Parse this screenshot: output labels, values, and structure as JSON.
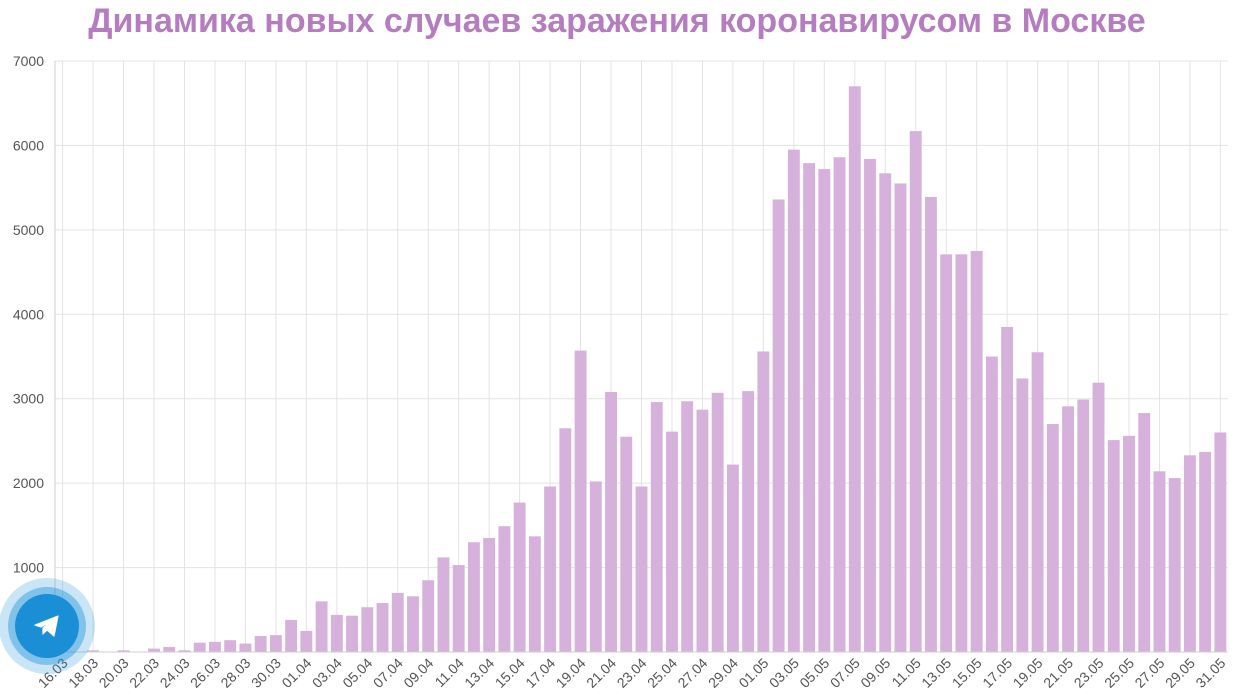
{
  "title": "Динамика новых случаев заражения коронавирусом в Москве",
  "colors": {
    "bar": "#d6b1db",
    "title": "#b57cc0",
    "grid": "#e3e3e3",
    "telegram": "#1a8fd6"
  },
  "telegram_button": {
    "icon": "telegram-plane-icon"
  },
  "chart_data": {
    "type": "bar",
    "title": "Динамика новых случаев заражения коронавирусом в Москве",
    "ylim": [
      0,
      7000
    ],
    "yticks": [
      1000,
      2000,
      3000,
      4000,
      5000,
      6000,
      7000
    ],
    "grid": true,
    "x_tick_labels": [
      "16.03",
      "18.03",
      "20.03",
      "22.03",
      "24.03",
      "26.03",
      "28.03",
      "30.03",
      "01.04",
      "03.04",
      "05.04",
      "07.04",
      "09.04",
      "11.04",
      "13.04",
      "15.04",
      "17.04",
      "19.04",
      "21.04",
      "23.04",
      "25.04",
      "27.04",
      "29.04",
      "01.05",
      "03.05",
      "05.05",
      "07.05",
      "09.05",
      "11.05",
      "13.05",
      "15.05",
      "17.05",
      "19.05",
      "21.05",
      "23.05",
      "25.05",
      "27.05",
      "29.05",
      "31.05"
    ],
    "categories": [
      "16.03",
      "17.03",
      "18.03",
      "19.03",
      "20.03",
      "21.03",
      "22.03",
      "23.03",
      "24.03",
      "25.03",
      "26.03",
      "27.03",
      "28.03",
      "29.03",
      "30.03",
      "31.03",
      "01.04",
      "02.04",
      "03.04",
      "04.04",
      "05.04",
      "06.04",
      "07.04",
      "08.04",
      "09.04",
      "10.04",
      "11.04",
      "12.04",
      "13.04",
      "14.04",
      "15.04",
      "16.04",
      "17.04",
      "18.04",
      "19.04",
      "20.04",
      "21.04",
      "22.04",
      "23.04",
      "24.04",
      "25.04",
      "26.04",
      "27.04",
      "28.04",
      "29.04",
      "30.04",
      "01.05",
      "02.05",
      "03.05",
      "04.05",
      "05.05",
      "06.05",
      "07.05",
      "08.05",
      "09.05",
      "10.05",
      "11.05",
      "12.05",
      "13.05",
      "14.05",
      "15.05",
      "16.05",
      "17.05",
      "18.05",
      "19.05",
      "20.05",
      "21.05",
      "22.05",
      "23.05",
      "24.05",
      "25.05",
      "26.05",
      "27.05",
      "28.05",
      "29.05",
      "30.05",
      "31.05"
    ],
    "values": [
      0,
      0,
      20,
      0,
      20,
      0,
      40,
      60,
      20,
      110,
      120,
      140,
      100,
      190,
      200,
      380,
      250,
      600,
      440,
      430,
      530,
      580,
      700,
      660,
      850,
      1120,
      1030,
      1300,
      1350,
      1490,
      1770,
      1370,
      1960,
      2650,
      3570,
      2020,
      3080,
      2550,
      1960,
      2960,
      2610,
      2970,
      2870,
      3070,
      2220,
      3090,
      3560,
      5360,
      5950,
      5790,
      5720,
      5860,
      6700,
      5840,
      5670,
      5550,
      6170,
      5390,
      4710,
      4710,
      4750,
      3500,
      3850,
      3240,
      3550,
      2700,
      2910,
      2990,
      3190,
      2510,
      2560,
      2830,
      2140,
      2060,
      2330,
      2370,
      2600
    ]
  }
}
